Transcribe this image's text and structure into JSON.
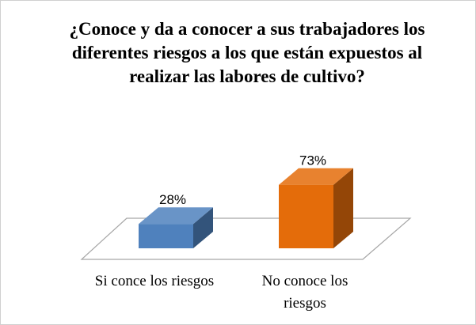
{
  "chart_data": {
    "type": "bar3d",
    "title": "¿Conoce y da a conocer a sus trabajadores los diferentes riesgos a los que están expuestos al realizar las labores de cultivo?",
    "categories": [
      "Si conce los riesgos",
      "No conoce los riesgos"
    ],
    "values": [
      28,
      73
    ],
    "value_labels": [
      "28%",
      "73%"
    ],
    "colors": [
      "#4f81bd",
      "#e46c0a"
    ]
  }
}
